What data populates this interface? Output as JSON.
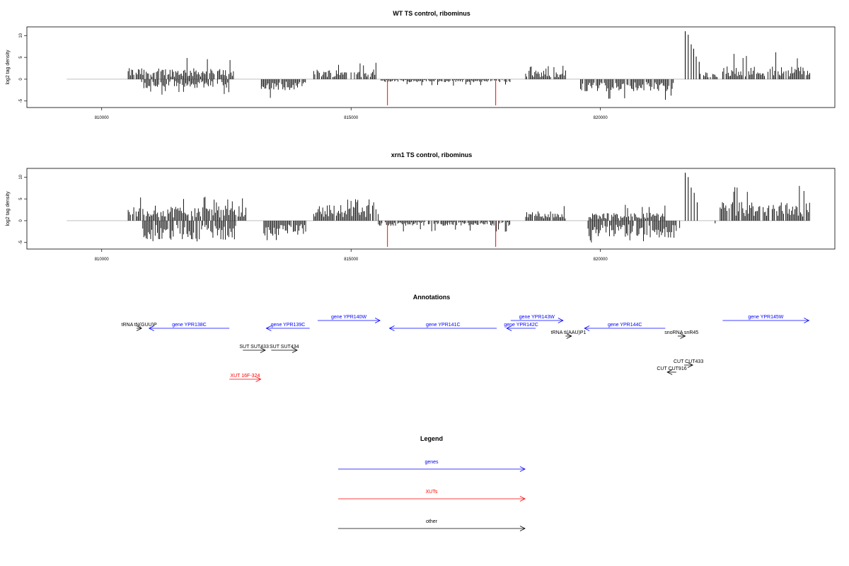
{
  "chart_data": [
    {
      "type": "bar",
      "title": "WT TS control, ribominus",
      "ylabel": "log2 tag density",
      "xlim": [
        808500,
        824700
      ],
      "ylim": [
        -6.5,
        12
      ],
      "xticks": [
        810000,
        815000,
        820000
      ],
      "xtick_labels": [
        "810000",
        "815000",
        "820000"
      ],
      "yticks": [
        10,
        5,
        0,
        -5
      ],
      "ytick_labels": [
        "10",
        "5",
        "0",
        "-5"
      ],
      "baseline_range": [
        809300,
        824200
      ],
      "series": [
        {
          "color": "#000000",
          "blocks": [
            {
              "x": [
                810530,
                812650
              ],
              "y": [
                2.2,
                5.4
              ],
              "dir": 1
            },
            {
              "x": [
                810800,
                812550
              ],
              "y": [
                -1.8,
                -3.6
              ],
              "dir": -1
            },
            {
              "x": [
                813200,
                814100
              ],
              "y": [
                -2.2,
                -4.4
              ],
              "dir": -1
            },
            {
              "x": [
                814250,
                815500
              ],
              "y": [
                2.0,
                4.1
              ],
              "dir": 1
            },
            {
              "x": [
                815600,
                818200
              ],
              "y": [
                -0.6,
                -1.5
              ],
              "dir": -1
            },
            {
              "x": [
                818500,
                819300
              ],
              "y": [
                1.8,
                3.2
              ],
              "dir": 1
            },
            {
              "x": [
                819600,
                821500
              ],
              "y": [
                -2.4,
                -4.8
              ],
              "dir": -1
            },
            {
              "x": [
                822000,
                822350
              ],
              "y": [
                1.2,
                1.8
              ],
              "dir": 1
            },
            {
              "x": [
                822450,
                824200
              ],
              "y": [
                2.6,
                6.2
              ],
              "dir": 1
            }
          ],
          "spikes": [
            {
              "x": 821700,
              "y": 11.0
            },
            {
              "x": 821760,
              "y": 10.2
            },
            {
              "x": 821820,
              "y": 8.0
            },
            {
              "x": 821870,
              "y": 7.0
            },
            {
              "x": 821920,
              "y": 5.2
            },
            {
              "x": 821980,
              "y": 4.0
            },
            {
              "x": 819300,
              "y": 2.0
            }
          ]
        },
        {
          "color": "#ff0000",
          "spikes": [
            {
              "x": 815730,
              "y": -6.0
            },
            {
              "x": 817900,
              "y": -6.0
            }
          ]
        }
      ]
    },
    {
      "type": "bar",
      "title": "xrn1 TS control, ribominus",
      "ylabel": "log2 tag density",
      "xlim": [
        808500,
        824700
      ],
      "ylim": [
        -6.5,
        12
      ],
      "xticks": [
        810000,
        815000,
        820000
      ],
      "xtick_labels": [
        "810000",
        "815000",
        "820000"
      ],
      "yticks": [
        10,
        5,
        0,
        -5
      ],
      "ytick_labels": [
        "10",
        "5",
        "0",
        "-5"
      ],
      "baseline_range": [
        809300,
        824200
      ],
      "series": [
        {
          "color": "#000000",
          "blocks": [
            {
              "x": [
                810530,
                812900
              ],
              "y": [
                3.0,
                5.5
              ],
              "dir": 1
            },
            {
              "x": [
                810800,
                812700
              ],
              "y": [
                -3.8,
                -5.0
              ],
              "dir": -1
            },
            {
              "x": [
                813250,
                814100
              ],
              "y": [
                -3.0,
                -4.6
              ],
              "dir": -1
            },
            {
              "x": [
                814250,
                815550
              ],
              "y": [
                3.2,
                5.2
              ],
              "dir": 1
            },
            {
              "x": [
                815550,
                818200
              ],
              "y": [
                -1.0,
                -2.6
              ],
              "dir": -1
            },
            {
              "x": [
                818500,
                819300
              ],
              "y": [
                2.0,
                3.4
              ],
              "dir": 1
            },
            {
              "x": [
                819750,
                821600
              ],
              "y": [
                -3.4,
                -5.4
              ],
              "dir": -1
            },
            {
              "x": [
                819750,
                821300
              ],
              "y": [
                1.6,
                3.8
              ],
              "dir": 1
            },
            {
              "x": [
                822400,
                824200
              ],
              "y": [
                3.8,
                8.6
              ],
              "dir": 1
            }
          ],
          "spikes": [
            {
              "x": 821700,
              "y": 11.0
            },
            {
              "x": 821760,
              "y": 10.0
            },
            {
              "x": 821820,
              "y": 7.6
            },
            {
              "x": 821880,
              "y": 6.4
            },
            {
              "x": 821940,
              "y": 4.2
            },
            {
              "x": 822300,
              "y": -0.6
            }
          ]
        },
        {
          "color": "#ff0000",
          "spikes": [
            {
              "x": 815730,
              "y": -6.0
            },
            {
              "x": 817900,
              "y": -6.0
            }
          ]
        }
      ]
    }
  ],
  "annotations": {
    "title": "Annotations",
    "xlim": [
      808500,
      824700
    ],
    "features": [
      {
        "label": "tRNA tN(GUU)P",
        "start": 810700,
        "end": 810800,
        "strand": "+",
        "row": 1,
        "color": "#000000"
      },
      {
        "label": "gene YPR138C",
        "start": 810950,
        "end": 812560,
        "strand": "-",
        "row": 1,
        "color": "#0000ff"
      },
      {
        "label": "SUT SUT433",
        "start": 812830,
        "end": 813280,
        "strand": "+",
        "row": 3,
        "color": "#000000"
      },
      {
        "label": "SUT SUT434",
        "start": 813400,
        "end": 813920,
        "strand": "+",
        "row": 3,
        "color": "#000000"
      },
      {
        "label": "gene YPR139C",
        "start": 813300,
        "end": 814170,
        "strand": "-",
        "row": 1,
        "color": "#0000ff"
      },
      {
        "label": "gene YPR140W",
        "start": 814330,
        "end": 815580,
        "strand": "+",
        "row": 0,
        "color": "#0000ff"
      },
      {
        "label": "gene YPR141C",
        "start": 815770,
        "end": 817920,
        "strand": "-",
        "row": 1,
        "color": "#0000ff"
      },
      {
        "label": "gene YPR142C",
        "start": 818120,
        "end": 818700,
        "strand": "-",
        "row": 1,
        "color": "#0000ff"
      },
      {
        "label": "gene YPR143W",
        "start": 818200,
        "end": 819250,
        "strand": "+",
        "row": 0,
        "color": "#0000ff"
      },
      {
        "label": "tRNA tI(AAU)P1",
        "start": 819300,
        "end": 819420,
        "strand": "+",
        "row": 2,
        "color": "#000000"
      },
      {
        "label": "gene YPR144C",
        "start": 819680,
        "end": 821300,
        "strand": "-",
        "row": 1,
        "color": "#0000ff"
      },
      {
        "label": "snoRNA snR45",
        "start": 821550,
        "end": 821700,
        "strand": "+",
        "row": 2,
        "color": "#000000"
      },
      {
        "label": "CUT CUT433",
        "start": 821680,
        "end": 821850,
        "strand": "+",
        "row": 4,
        "color": "#000000"
      },
      {
        "label": "CUT CUT916",
        "start": 821340,
        "end": 821520,
        "strand": "-",
        "row": 5,
        "color": "#000000"
      },
      {
        "label": "XUT 16F-324",
        "start": 812560,
        "end": 813190,
        "strand": "+",
        "row": 6,
        "color": "#ff0000"
      },
      {
        "label": "gene YPR145W",
        "start": 822450,
        "end": 824180,
        "strand": "+",
        "row": 0,
        "color": "#0000ff"
      }
    ]
  },
  "legend": {
    "title": "Legend",
    "items": [
      {
        "label": "genes",
        "color": "#0000ff"
      },
      {
        "label": "XUTs",
        "color": "#ff0000"
      },
      {
        "label": "other",
        "color": "#000000"
      }
    ]
  }
}
